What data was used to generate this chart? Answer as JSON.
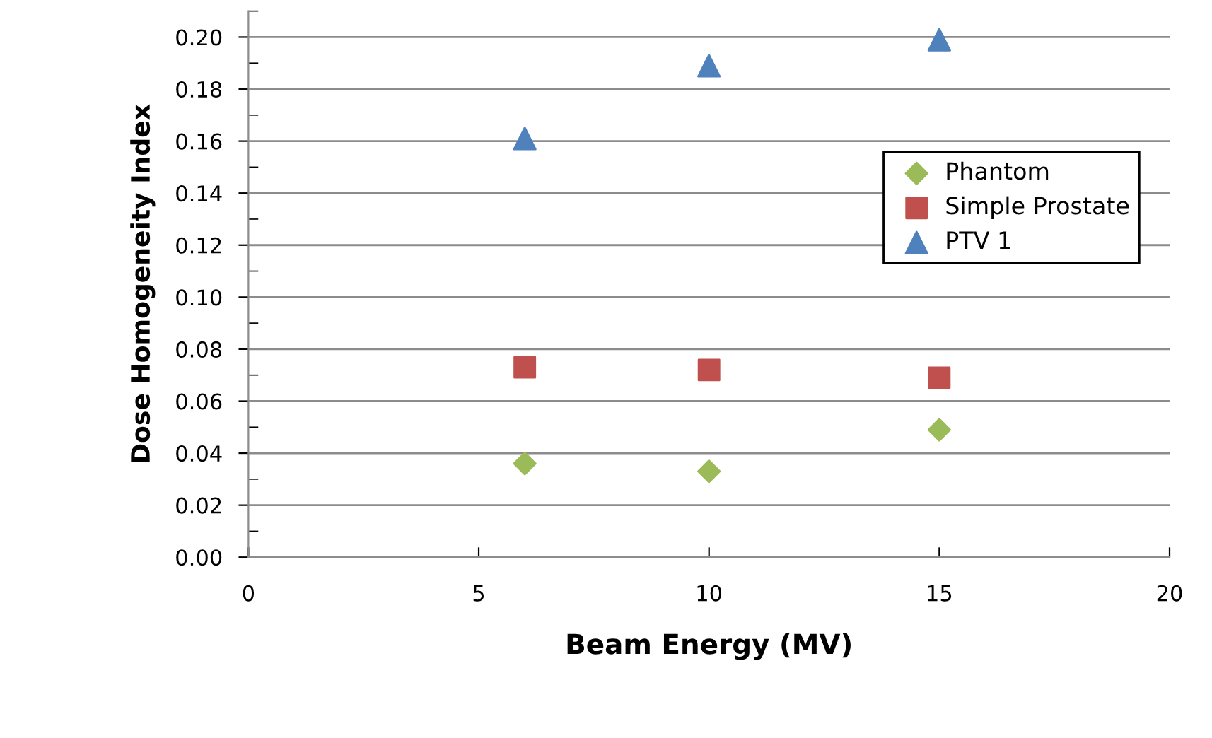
{
  "chart_data": {
    "type": "scatter",
    "xlabel": "Beam Energy (MV)",
    "ylabel": "Dose Homogeneity Index",
    "xlim": [
      0,
      20
    ],
    "xticks": [
      0,
      5,
      10,
      15,
      20
    ],
    "ylim": [
      0,
      0.21
    ],
    "yticks": [
      {
        "value": 0,
        "label": "0.00"
      },
      {
        "value": 0.02,
        "label": "0.02"
      },
      {
        "value": 0.04,
        "label": "0.04"
      },
      {
        "value": 0.06,
        "label": "0.06"
      },
      {
        "value": 0.08,
        "label": "0.08"
      },
      {
        "value": 0.1,
        "label": "0.10"
      },
      {
        "value": 0.12,
        "label": "0.12"
      },
      {
        "value": 0.14,
        "label": "0.14"
      },
      {
        "value": 0.16,
        "label": "0.16"
      },
      {
        "value": 0.18,
        "label": "0.18"
      },
      {
        "value": 0.2,
        "label": "0.20"
      }
    ],
    "grid": "y",
    "legend": "right",
    "series": [
      {
        "name": "Phantom",
        "color": "#9bbb59",
        "marker": "diamond",
        "x": [
          6,
          10,
          15
        ],
        "values": [
          0.036,
          0.033,
          0.049
        ]
      },
      {
        "name": "Simple Prostate",
        "color": "#c0504d",
        "marker": "square",
        "x": [
          6,
          10,
          15
        ],
        "values": [
          0.073,
          0.072,
          0.069
        ]
      },
      {
        "name": "PTV 1",
        "color": "#4f81bd",
        "marker": "triangle",
        "x": [
          6,
          10,
          15
        ],
        "values": [
          0.161,
          0.189,
          0.199
        ]
      }
    ]
  }
}
